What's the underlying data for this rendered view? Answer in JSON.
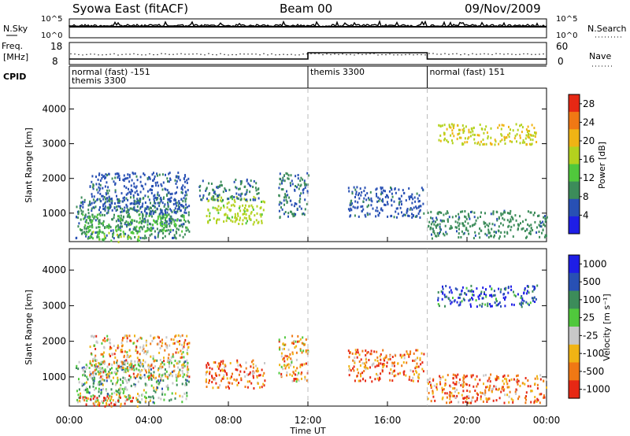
{
  "header": {
    "station": "Syowa East (fitACF)",
    "beam": "Beam 00",
    "date": "09/Nov/2009"
  },
  "panels": {
    "nsky": {
      "label": "N.Sky",
      "left_ticks": [
        "10^5",
        "10^0"
      ],
      "right_label": "N.Search",
      "right_ticks": [
        "10^5",
        "10^0"
      ]
    },
    "freq": {
      "label_line1": "Freq.",
      "label_line2": "[MHz]",
      "left_ticks": [
        "18",
        "8"
      ],
      "right_label": "Nave",
      "right_ticks": [
        "60",
        "0"
      ]
    },
    "cpid": {
      "label": "CPID",
      "segments": [
        {
          "start_hour": 0,
          "line1": "normal (fast) -151",
          "line2": "themis 3300"
        },
        {
          "start_hour": 12,
          "line1": "themis 3300",
          "line2": ""
        },
        {
          "start_hour": 18,
          "line1": "normal (fast) 151",
          "line2": ""
        }
      ]
    }
  },
  "colors": {
    "power": [
      "#1e1ee6",
      "#2850b4",
      "#3c8c5a",
      "#50c83c",
      "#b4d21e",
      "#f0b414",
      "#f07814",
      "#e62814"
    ],
    "velocity": [
      "#1e1ee6",
      "#2850b4",
      "#3c8c5a",
      "#50c83c",
      "#c8c8c8",
      "#f0b414",
      "#f07814",
      "#e62814"
    ]
  },
  "chart_data": [
    {
      "type": "heatmap",
      "title": "",
      "xlabel": "",
      "ylabel": "Slant Range [km]",
      "x_ticks": [
        "00:00",
        "04:00",
        "08:00",
        "12:00",
        "16:00",
        "20:00",
        "00:00"
      ],
      "xlim": [
        0,
        24
      ],
      "y_ticks": [
        1000,
        2000,
        3000,
        4000
      ],
      "ylim": [
        180,
        4600
      ],
      "colorbar": {
        "label": "Power [dB]",
        "ticks": [
          "4",
          "8",
          "12",
          "16",
          "20",
          "24",
          "28"
        ],
        "range": [
          0,
          30
        ]
      },
      "echo_regions": [
        {
          "t0": 0.3,
          "t1": 6.0,
          "r0": 300,
          "r1": 1500,
          "level": 8.5
        },
        {
          "t0": 0.5,
          "t1": 6.0,
          "r0": 500,
          "r1": 1000,
          "level": 12
        },
        {
          "t0": 0.8,
          "t1": 3.5,
          "r0": 200,
          "r1": 500,
          "level": 13
        },
        {
          "t0": 1.0,
          "t1": 6.0,
          "r0": 1000,
          "r1": 2200,
          "level": 6
        },
        {
          "t0": 6.8,
          "t1": 9.8,
          "r0": 700,
          "r1": 1500,
          "level": 16
        },
        {
          "t0": 6.5,
          "t1": 9.5,
          "r0": 1400,
          "r1": 2000,
          "level": 8
        },
        {
          "t0": 10.5,
          "t1": 12.0,
          "r0": 900,
          "r1": 2200,
          "level": 8
        },
        {
          "t0": 14.0,
          "t1": 17.8,
          "r0": 900,
          "r1": 1800,
          "level": 6
        },
        {
          "t0": 18.0,
          "t1": 24.0,
          "r0": 300,
          "r1": 1100,
          "level": 9
        },
        {
          "t0": 18.5,
          "t1": 23.5,
          "r0": 3000,
          "r1": 3600,
          "level": 18
        }
      ]
    },
    {
      "type": "heatmap",
      "title": "",
      "xlabel": "Time UT",
      "ylabel": "Slant Range [km]",
      "x_ticks": [
        "00:00",
        "04:00",
        "08:00",
        "12:00",
        "16:00",
        "20:00",
        "00:00"
      ],
      "xlim": [
        0,
        24
      ],
      "y_ticks": [
        1000,
        2000,
        3000,
        4000
      ],
      "ylim": [
        180,
        4600
      ],
      "colorbar": {
        "label": "Velocity [m s⁻¹]",
        "ticks": [
          "1000",
          "500",
          "100",
          "25",
          "-25",
          "-100",
          "-500",
          "-1000"
        ]
      },
      "echo_regions": [
        {
          "t0": 0.3,
          "t1": 6.0,
          "r0": 300,
          "r1": 1500,
          "level": 3
        },
        {
          "t0": 0.5,
          "t1": 3.5,
          "r0": 200,
          "r1": 500,
          "level": 6
        },
        {
          "t0": 1.0,
          "t1": 6.0,
          "r0": 1000,
          "r1": 2200,
          "level": 5
        },
        {
          "t0": 6.8,
          "t1": 9.8,
          "r0": 700,
          "r1": 1500,
          "level": 6
        },
        {
          "t0": 10.5,
          "t1": 12.0,
          "r0": 900,
          "r1": 2200,
          "level": 5
        },
        {
          "t0": 14.0,
          "t1": 17.8,
          "r0": 900,
          "r1": 1800,
          "level": 6
        },
        {
          "t0": 18.0,
          "t1": 24.0,
          "r0": 300,
          "r1": 1100,
          "level": 6
        },
        {
          "t0": 18.5,
          "t1": 23.5,
          "r0": 3000,
          "r1": 3600,
          "level": 1
        }
      ]
    }
  ]
}
